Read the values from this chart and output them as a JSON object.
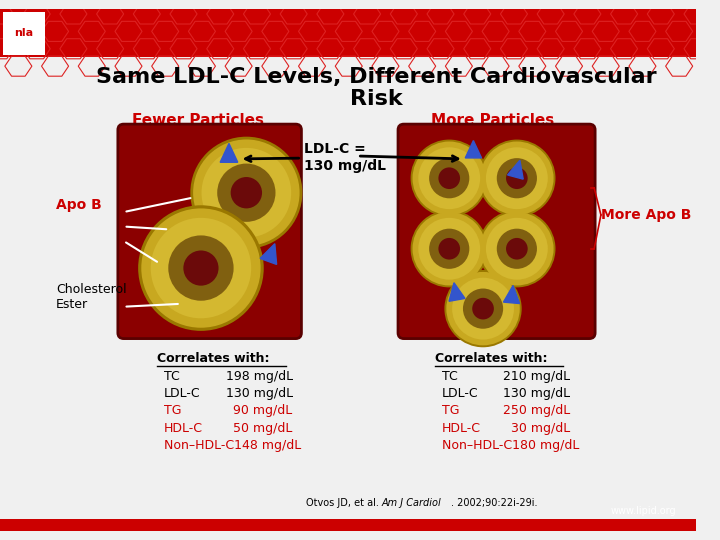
{
  "title_line1": "Same LDL-C Levels, Different Cardiovascular",
  "title_line2": "Risk",
  "bg_color": "#ffffff",
  "header_bg": "#cc0000",
  "slide_bg": "#f0f0f0",
  "fewer_label": "Fewer Particles",
  "more_label": "More Particles",
  "ldlc_label": "LDL-C =\n130 mg/dL",
  "apob_label": "Apo B",
  "more_apob_label": "More Apo B",
  "cholesterol_label": "Cholesterol\nEster",
  "left_box_color": "#8b0000",
  "right_box_color": "#8b0000",
  "left_correlates": [
    [
      "Correlates with:",
      "",
      false,
      true
    ],
    [
      "TC",
      "198 mg/dL",
      false,
      false
    ],
    [
      "LDL-C",
      "130 mg/dL",
      false,
      false
    ],
    [
      "TG",
      "90 mg/dL",
      true,
      false
    ],
    [
      "HDL-C",
      "50 mg/dL",
      true,
      false
    ],
    [
      "Non–HDL-C148 mg/dL",
      "",
      true,
      false
    ]
  ],
  "right_correlates": [
    [
      "Correlates with:",
      "",
      false,
      true
    ],
    [
      "TC",
      "210 mg/dL",
      false,
      false
    ],
    [
      "LDL-C",
      "130 mg/dL",
      false,
      false
    ],
    [
      "TG",
      "250 mg/dL",
      true,
      false
    ],
    [
      "HDL-C",
      "30 mg/dL",
      true,
      false
    ],
    [
      "Non–HDL-C180 mg/dL",
      "",
      true,
      false
    ]
  ],
  "citation": "Otvos JD, et al. Am J Cardiol. 2002;90:22i-29i.",
  "website": "www.lipid.org",
  "red_color": "#cc0000",
  "black_color": "#000000",
  "title_color": "#000000"
}
